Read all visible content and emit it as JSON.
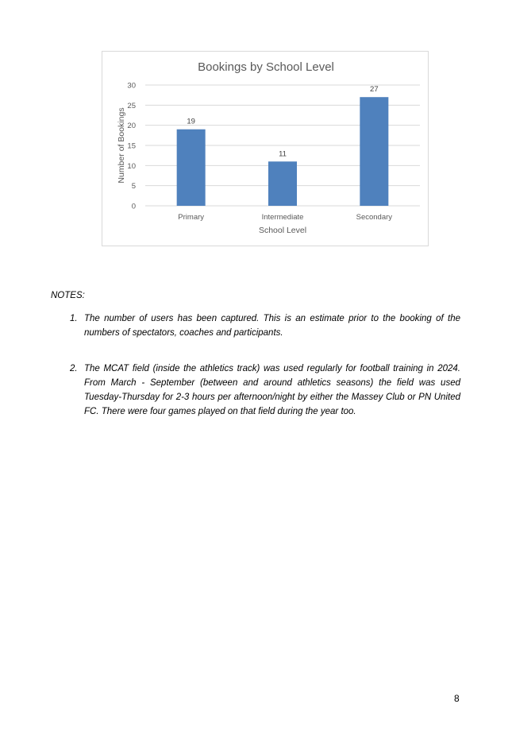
{
  "chart_data": {
    "type": "bar",
    "title": "Bookings by School Level",
    "xlabel": "School Level",
    "ylabel": "Number of Bookings",
    "categories": [
      "Primary",
      "Intermediate",
      "Secondary"
    ],
    "values": [
      19,
      11,
      27
    ],
    "data_labels": [
      "19",
      "11",
      "27"
    ],
    "ylim": [
      0,
      30
    ],
    "yticks": [
      0,
      5,
      10,
      15,
      20,
      25,
      30
    ],
    "grid": true,
    "legend": "none",
    "bar_color": "#4f81bd"
  },
  "notes": {
    "label": "NOTES:",
    "items": [
      {
        "num": "1.",
        "text": "The number of users has been captured. This is an estimate prior to the booking of the numbers of spectators, coaches and participants."
      },
      {
        "num": "2.",
        "text": "The MCAT field (inside the athletics track) was used regularly for football training in 2024. From March - September (between and around athletics seasons) the field was used Tuesday-Thursday for 2-3 hours per afternoon/night by either the Massey Club or PN United FC. There were four games played on that field during the year too."
      }
    ]
  },
  "page_number": "8"
}
